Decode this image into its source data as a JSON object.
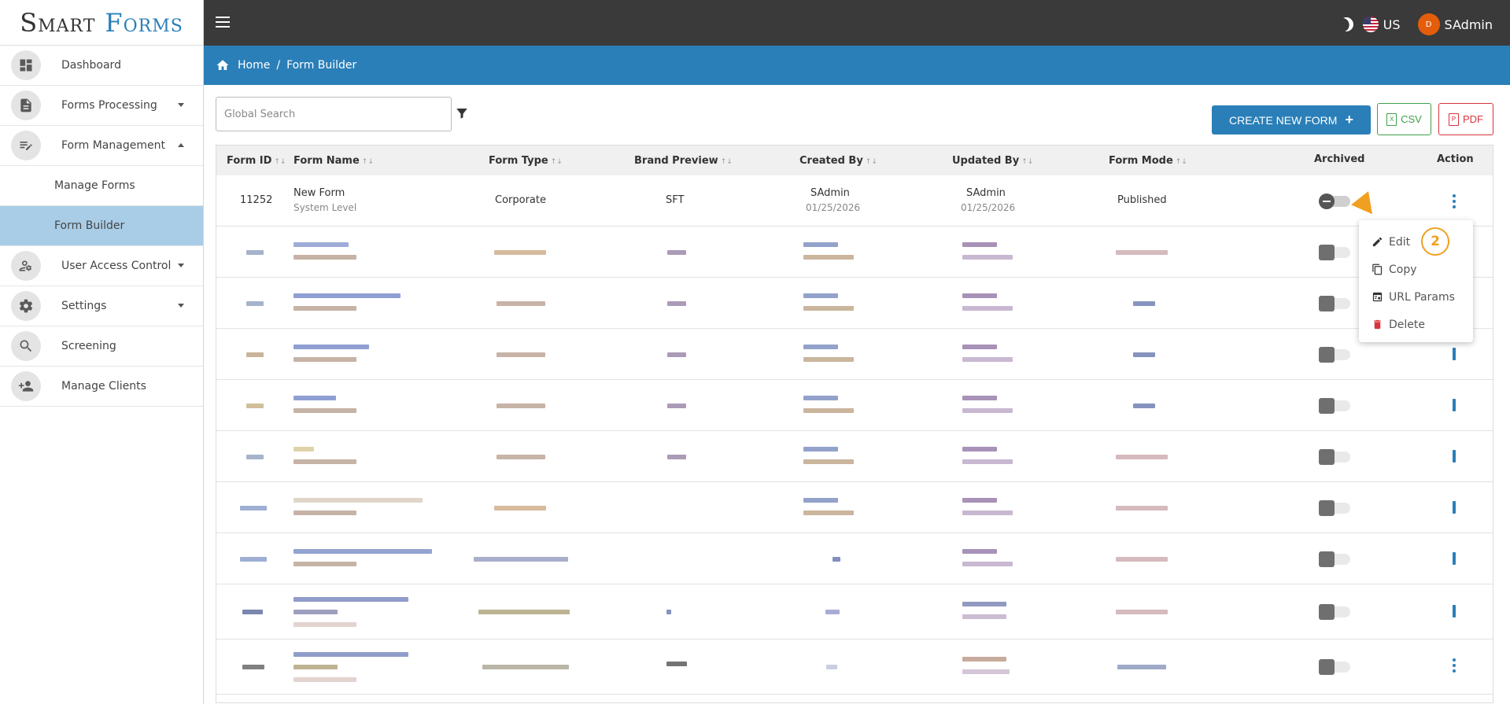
{
  "app": {
    "logo_word1": "Smart",
    "logo_word2": "Forms"
  },
  "sidebar": {
    "items": [
      {
        "label": "Dashboard"
      },
      {
        "label": "Forms Processing"
      },
      {
        "label": "Form Management"
      },
      {
        "label": "Manage Forms"
      },
      {
        "label": "Form Builder"
      },
      {
        "label": "User Access Control"
      },
      {
        "label": "Settings"
      },
      {
        "label": "Screening"
      },
      {
        "label": "Manage Clients"
      }
    ]
  },
  "topbar": {
    "locale": "US",
    "avatar_initial": "D",
    "user": "SAdmin"
  },
  "breadcrumb": {
    "home": "Home",
    "sep": "/",
    "current": "Form Builder"
  },
  "toolbar": {
    "search_placeholder": "Global Search",
    "create_label": "CREATE NEW FORM",
    "create_icon": "+",
    "csv_label": "CSV",
    "pdf_label": "PDF",
    "csv_icon_glyph": "X",
    "pdf_icon_glyph": "P"
  },
  "table": {
    "columns": [
      "Form ID",
      "Form Name",
      "Form Type",
      "Brand Preview",
      "Created By",
      "Updated By",
      "Form Mode",
      "Archived",
      "Action"
    ],
    "sort_glyph": "↑↓",
    "first_row": {
      "form_id": "11252",
      "form_name": "New Form",
      "form_level": "System Level",
      "form_type": "Corporate",
      "brand": "SFT",
      "created_by": "SAdmin",
      "created_date": "01/25/2026",
      "updated_by": "SAdmin",
      "updated_date": "01/25/2026",
      "form_mode": "Published"
    }
  },
  "context_menu": {
    "items": [
      {
        "label": "Edit",
        "icon": "pencil-icon"
      },
      {
        "label": "Copy",
        "icon": "copy-icon"
      },
      {
        "label": "URL Params",
        "icon": "url-params-icon"
      },
      {
        "label": "Delete",
        "icon": "trash-icon"
      }
    ],
    "step_badge": "2"
  },
  "colors": {
    "primary": "#2a7fb8",
    "topbar": "#3a3a3a",
    "active_nav": "#a9cde7",
    "csv": "#3f9f4a",
    "pdf": "#d9343e",
    "annotation": "#f0a020"
  }
}
